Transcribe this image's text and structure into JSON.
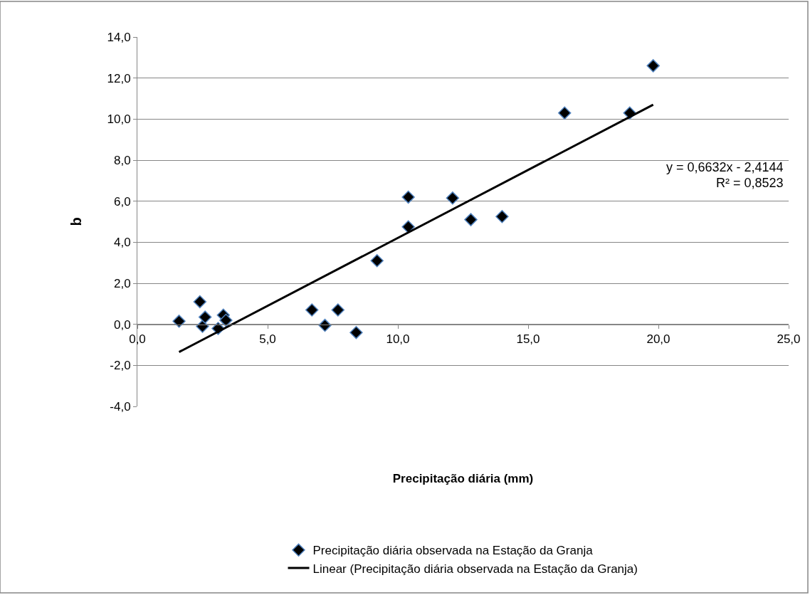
{
  "chart_data": {
    "type": "scatter",
    "xlabel": "Precipitação diária (mm)",
    "ylabel": "b",
    "xlim": [
      0,
      25
    ],
    "xticks": [
      {
        "value": 0,
        "label": "0,0"
      },
      {
        "value": 5,
        "label": "5,0"
      },
      {
        "value": 10,
        "label": "10,0"
      },
      {
        "value": 15,
        "label": "15,0"
      },
      {
        "value": 20,
        "label": "20,0"
      },
      {
        "value": 25,
        "label": "25,0"
      }
    ],
    "ylim": [
      -4,
      14
    ],
    "yticks": [
      {
        "value": -4,
        "label": "-4,0"
      },
      {
        "value": -2,
        "label": "-2,0"
      },
      {
        "value": 0,
        "label": "0,0"
      },
      {
        "value": 2,
        "label": "2,0"
      },
      {
        "value": 4,
        "label": "4,0"
      },
      {
        "value": 6,
        "label": "6,0"
      },
      {
        "value": 8,
        "label": "8,0"
      },
      {
        "value": 10,
        "label": "10,0"
      },
      {
        "value": 12,
        "label": "12,0"
      },
      {
        "value": 14,
        "label": "14,0"
      }
    ],
    "grid": "y",
    "legend": "bottom",
    "marker": "diamond",
    "series": [
      {
        "name": "Precipitação diária observada na Estação da Granja",
        "color": "#000000",
        "x": [
          1.6,
          2.4,
          2.5,
          2.6,
          3.1,
          3.3,
          3.4,
          6.7,
          7.2,
          7.7,
          8.4,
          9.2,
          10.4,
          10.4,
          12.1,
          12.8,
          14.0,
          16.4,
          18.9,
          19.8
        ],
        "values": [
          0.15,
          1.1,
          -0.1,
          0.35,
          -0.2,
          0.45,
          0.2,
          0.7,
          -0.05,
          0.7,
          -0.4,
          3.1,
          6.2,
          4.75,
          6.15,
          5.1,
          5.25,
          10.3,
          10.3,
          12.6
        ]
      },
      {
        "name": "Linear (Precipitação diária observada na Estação da Granja)",
        "type": "line",
        "color": "#000000",
        "line_style": "solid",
        "marker": "none",
        "x": [
          1.6,
          19.8
        ],
        "values": [
          -1.35,
          10.7
        ]
      }
    ],
    "annotations": [
      "y = 0,6632x - 2,4144",
      "R² = 0,8523"
    ]
  }
}
